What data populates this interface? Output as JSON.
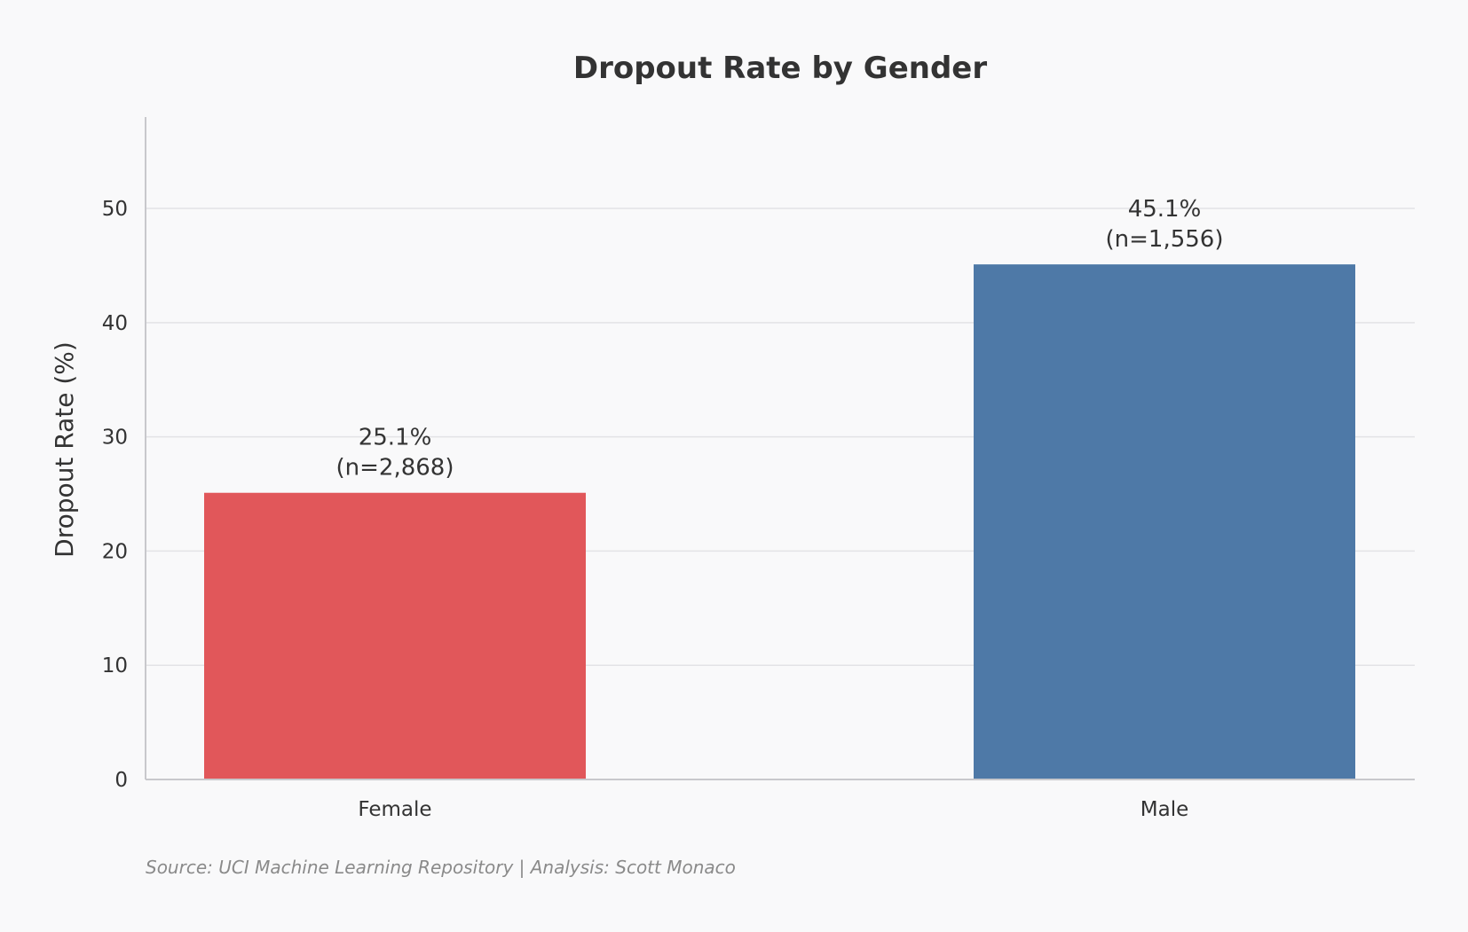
{
  "chart_data": {
    "type": "bar",
    "title": "Dropout Rate by Gender",
    "xlabel": "",
    "ylabel": "Dropout Rate (%)",
    "ylim": [
      0,
      58
    ],
    "yticks": [
      0,
      10,
      20,
      30,
      40,
      50
    ],
    "grid": true,
    "categories": [
      "Female",
      "Male"
    ],
    "values": [
      25.1,
      45.1
    ],
    "colors": [
      "#e1575a",
      "#4e79a7"
    ],
    "data_labels": [
      [
        "25.1%",
        "(n=2,868)"
      ],
      [
        "45.1%",
        "(n=1,556)"
      ]
    ],
    "source": "Source: UCI Machine Learning Repository | Analysis: Scott Monaco"
  }
}
